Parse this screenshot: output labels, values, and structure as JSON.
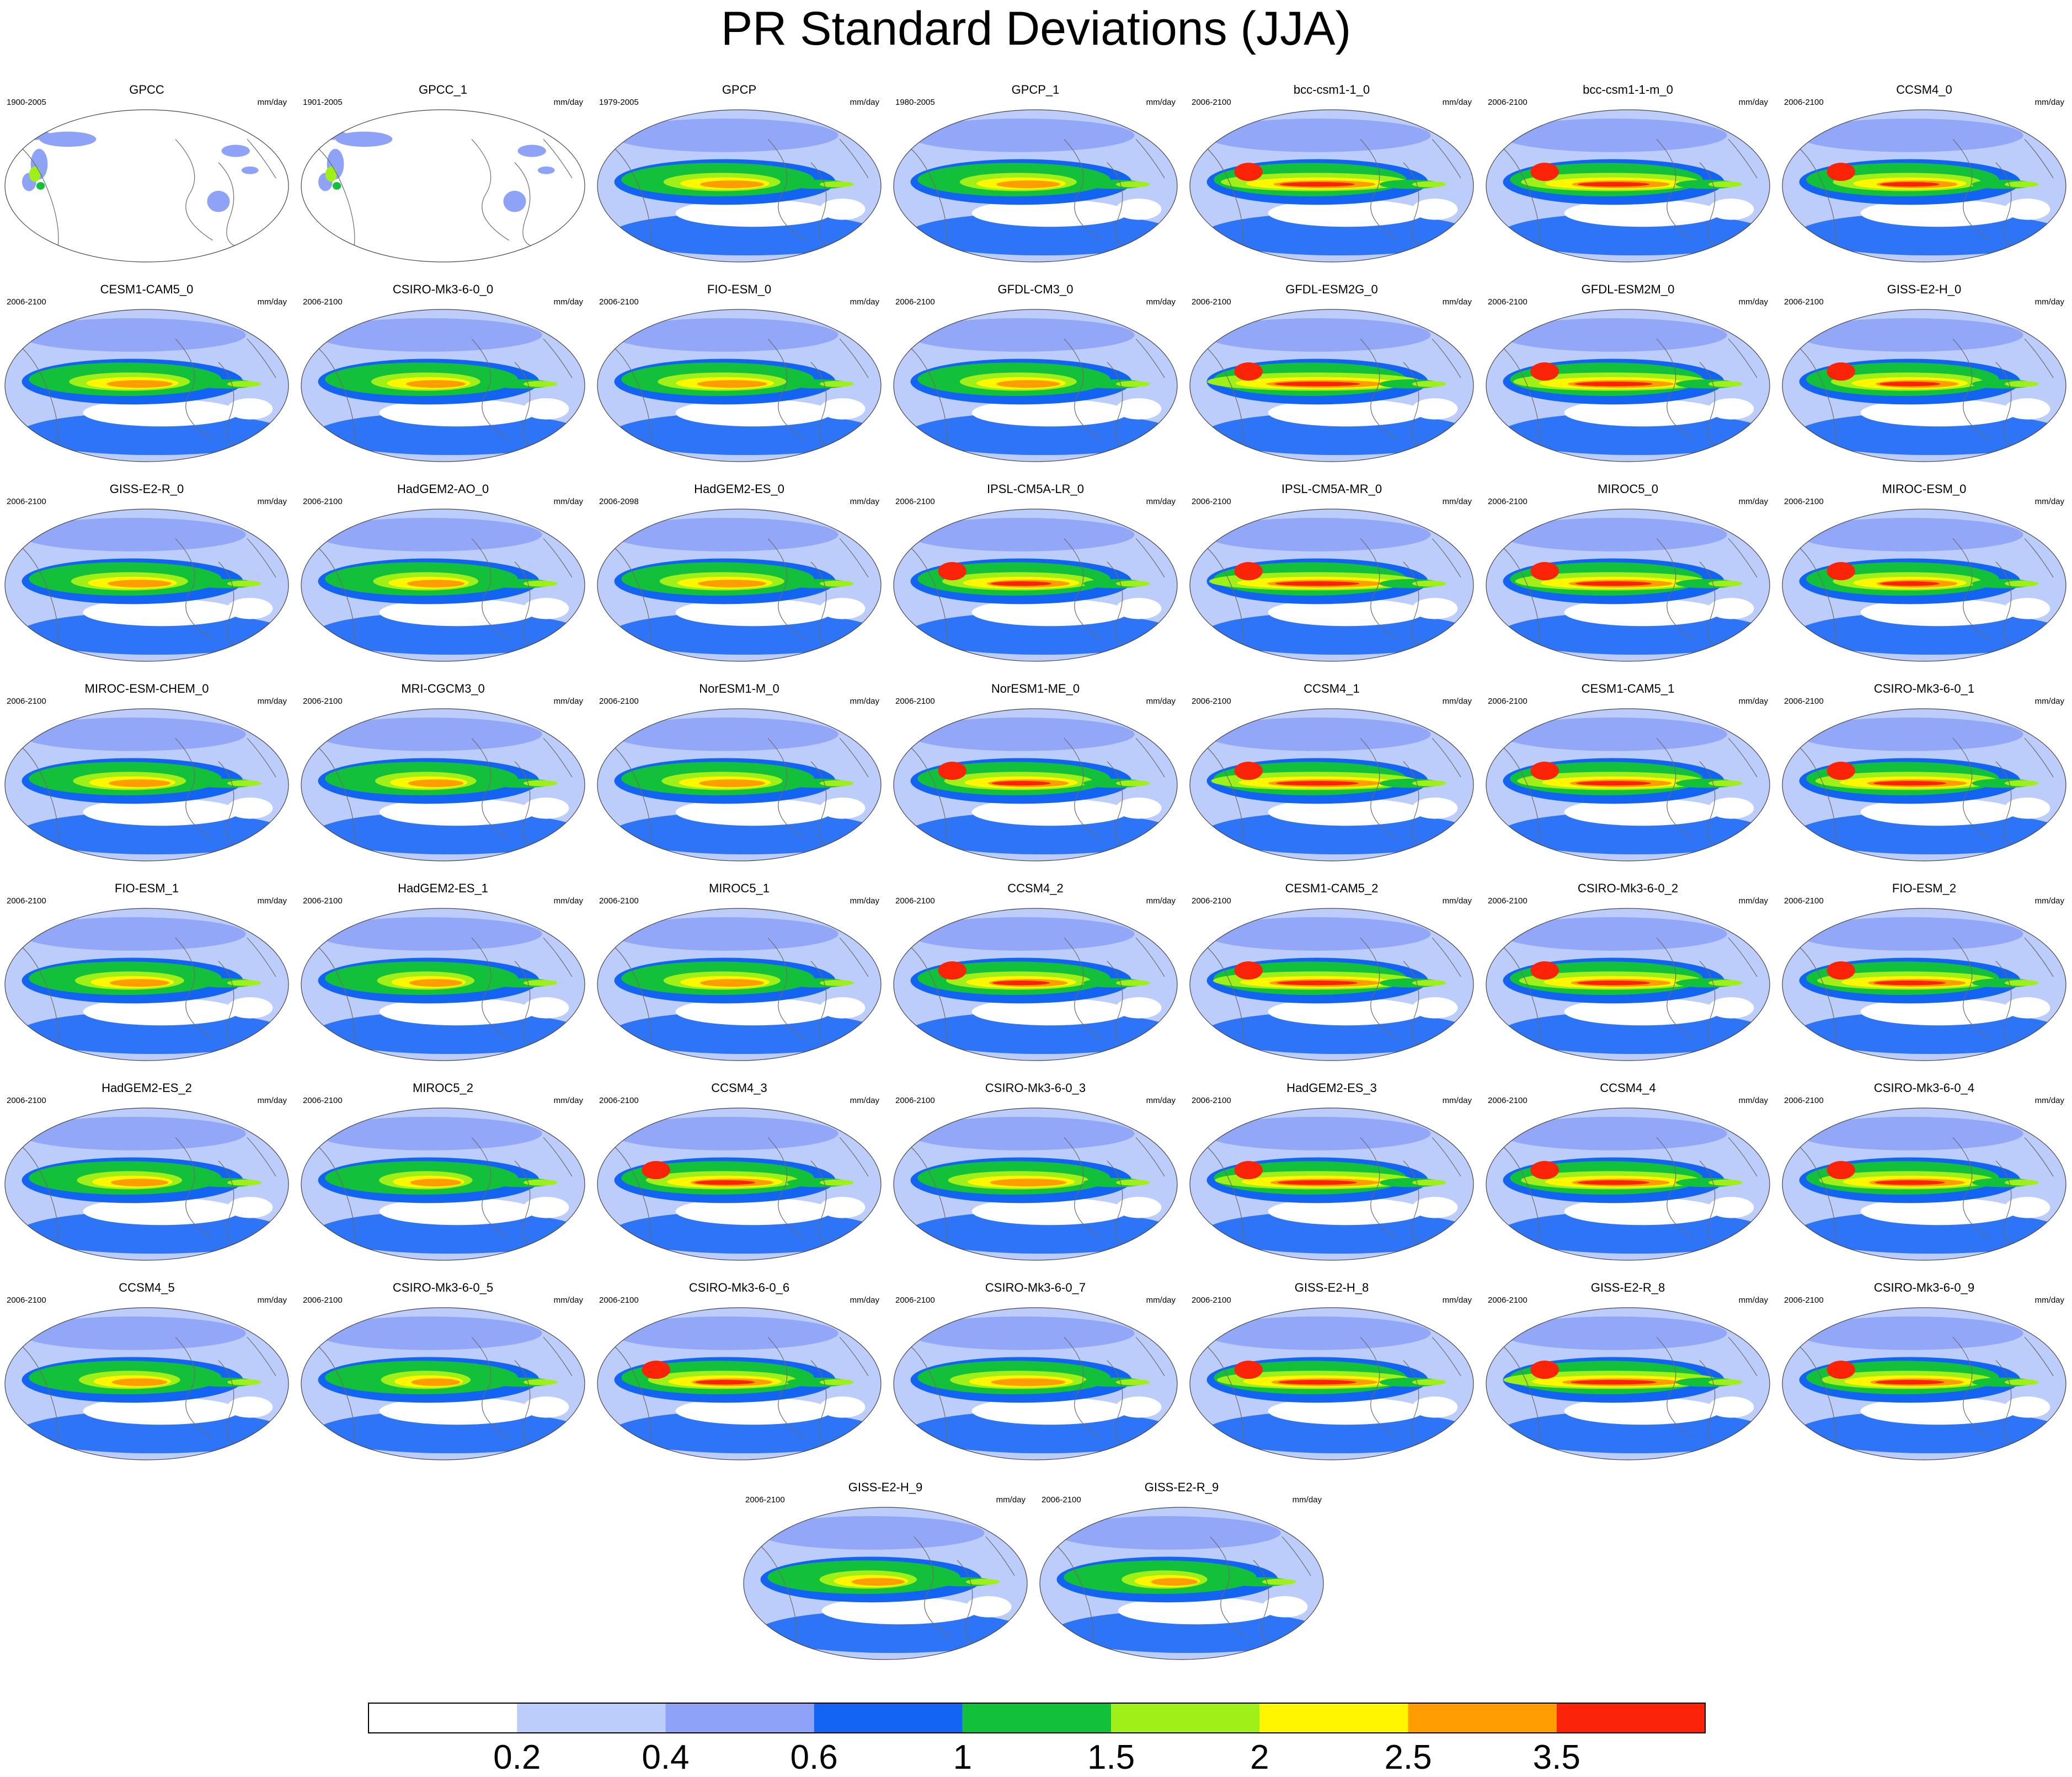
{
  "title": "PR Standard Deviations (JJA)",
  "units": "mm/day",
  "panels": [
    {
      "name": "GPCC",
      "period": "1900-2005"
    },
    {
      "name": "GPCC_1",
      "period": "1901-2005"
    },
    {
      "name": "GPCP",
      "period": "1979-2005"
    },
    {
      "name": "GPCP_1",
      "period": "1980-2005"
    },
    {
      "name": "bcc-csm1-1_0",
      "period": "2006-2100"
    },
    {
      "name": "bcc-csm1-1-m_0",
      "period": "2006-2100"
    },
    {
      "name": "CCSM4_0",
      "period": "2006-2100"
    },
    {
      "name": "CESM1-CAM5_0",
      "period": "2006-2100"
    },
    {
      "name": "CSIRO-Mk3-6-0_0",
      "period": "2006-2100"
    },
    {
      "name": "FIO-ESM_0",
      "period": "2006-2100"
    },
    {
      "name": "GFDL-CM3_0",
      "period": "2006-2100"
    },
    {
      "name": "GFDL-ESM2G_0",
      "period": "2006-2100"
    },
    {
      "name": "GFDL-ESM2M_0",
      "period": "2006-2100"
    },
    {
      "name": "GISS-E2-H_0",
      "period": "2006-2100"
    },
    {
      "name": "GISS-E2-R_0",
      "period": "2006-2100"
    },
    {
      "name": "HadGEM2-AO_0",
      "period": "2006-2100"
    },
    {
      "name": "HadGEM2-ES_0",
      "period": "2006-2098"
    },
    {
      "name": "IPSL-CM5A-LR_0",
      "period": "2006-2100"
    },
    {
      "name": "IPSL-CM5A-MR_0",
      "period": "2006-2100"
    },
    {
      "name": "MIROC5_0",
      "period": "2006-2100"
    },
    {
      "name": "MIROC-ESM_0",
      "period": "2006-2100"
    },
    {
      "name": "MIROC-ESM-CHEM_0",
      "period": "2006-2100"
    },
    {
      "name": "MRI-CGCM3_0",
      "period": "2006-2100"
    },
    {
      "name": "NorESM1-M_0",
      "period": "2006-2100"
    },
    {
      "name": "NorESM1-ME_0",
      "period": "2006-2100"
    },
    {
      "name": "CCSM4_1",
      "period": "2006-2100"
    },
    {
      "name": "CESM1-CAM5_1",
      "period": "2006-2100"
    },
    {
      "name": "CSIRO-Mk3-6-0_1",
      "period": "2006-2100"
    },
    {
      "name": "FIO-ESM_1",
      "period": "2006-2100"
    },
    {
      "name": "HadGEM2-ES_1",
      "period": "2006-2100"
    },
    {
      "name": "MIROC5_1",
      "period": "2006-2100"
    },
    {
      "name": "CCSM4_2",
      "period": "2006-2100"
    },
    {
      "name": "CESM1-CAM5_2",
      "period": "2006-2100"
    },
    {
      "name": "CSIRO-Mk3-6-0_2",
      "period": "2006-2100"
    },
    {
      "name": "FIO-ESM_2",
      "period": "2006-2100"
    },
    {
      "name": "HadGEM2-ES_2",
      "period": "2006-2100"
    },
    {
      "name": "MIROC5_2",
      "period": "2006-2100"
    },
    {
      "name": "CCSM4_3",
      "period": "2006-2100"
    },
    {
      "name": "CSIRO-Mk3-6-0_3",
      "period": "2006-2100"
    },
    {
      "name": "HadGEM2-ES_3",
      "period": "2006-2100"
    },
    {
      "name": "CCSM4_4",
      "period": "2006-2100"
    },
    {
      "name": "CSIRO-Mk3-6-0_4",
      "period": "2006-2100"
    },
    {
      "name": "CCSM4_5",
      "period": "2006-2100"
    },
    {
      "name": "CSIRO-Mk3-6-0_5",
      "period": "2006-2100"
    },
    {
      "name": "CSIRO-Mk3-6-0_6",
      "period": "2006-2100"
    },
    {
      "name": "CSIRO-Mk3-6-0_7",
      "period": "2006-2100"
    },
    {
      "name": "GISS-E2-H_8",
      "period": "2006-2100"
    },
    {
      "name": "GISS-E2-R_8",
      "period": "2006-2100"
    },
    {
      "name": "CSIRO-Mk3-6-0_9",
      "period": "2006-2100"
    },
    {
      "name": "GISS-E2-H_9",
      "period": "2006-2100"
    },
    {
      "name": "GISS-E2-R_9",
      "period": "2006-2100"
    }
  ],
  "colorbar": {
    "labels": [
      "0.2",
      "0.4",
      "0.6",
      "1",
      "1.5",
      "2",
      "2.5",
      "3.5"
    ],
    "colors": [
      "#ffffff",
      "#bccdfb",
      "#8ea3f7",
      "#1464f4",
      "#12c039",
      "#9ef018",
      "#fff600",
      "#ff9d00",
      "#fa2308"
    ]
  }
}
